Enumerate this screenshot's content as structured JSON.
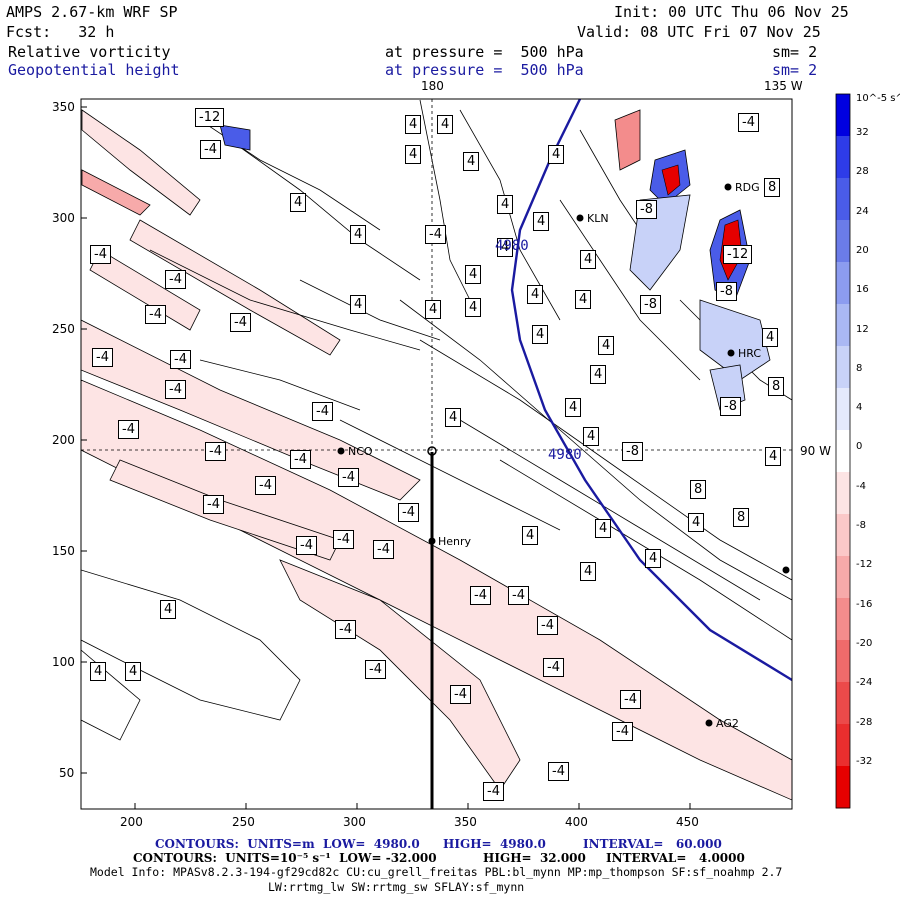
{
  "header": {
    "model_title": "AMPS 2.67-km WRF SP",
    "forecast": "Fcst:   32 h",
    "init": "Init: 00 UTC Thu 06 Nov 25",
    "valid": "Valid: 08 UTC Fri 07 Nov 25",
    "field1_name": "Relative vorticity",
    "field1_level": "at pressure =  500 hPa",
    "field1_smooth": "sm= 2",
    "field2_name": "Geopotential height",
    "field2_level": "at pressure =  500 hPa",
    "field2_smooth": "sm= 2"
  },
  "map": {
    "lon_180": "180",
    "lon_135w": "135 W",
    "lon_90w": "90 W",
    "x_ticks": [
      "200",
      "250",
      "300",
      "350",
      "400",
      "450"
    ],
    "y_ticks": [
      "350",
      "300",
      "250",
      "200",
      "150",
      "100",
      "50"
    ],
    "stations": [
      "NCO",
      "Henry",
      "KLN",
      "RDG",
      "HRC",
      "AG2"
    ],
    "height_contour_label": "4980",
    "contour_labels_neg": [
      "-4",
      "-8",
      "-12"
    ],
    "contour_labels_pos": [
      "4",
      "8"
    ]
  },
  "colorbar": {
    "unit": "10^-5 s^-1",
    "labels": [
      "32",
      "28",
      "24",
      "20",
      "16",
      "12",
      "8",
      "4",
      "0",
      "-4",
      "-8",
      "-12",
      "-16",
      "-20",
      "-24",
      "-28",
      "-32"
    ],
    "colors": [
      "#0000e0",
      "#2e3ce8",
      "#4a5ce8",
      "#6b7ce8",
      "#8c9cf0",
      "#aab8f4",
      "#c8d2f8",
      "#e4e9fc",
      "#ffffff",
      "#fde4e4",
      "#fbc8c8",
      "#f7aaaa",
      "#f38c8c",
      "#ef6b6b",
      "#ec4a4a",
      "#ea2e2e",
      "#e60000"
    ]
  },
  "footer": {
    "line1_a": "CONTOURS:  UNITS=m  LOW=  4980.0",
    "line1_b": "HIGH=  4980.0",
    "line1_c": "INTERVAL=   60.000",
    "line2_a": "CONTOURS:  UNITS=10⁻⁵ s⁻¹  LOW= -32.000",
    "line2_b": "HIGH=  32.000",
    "line2_c": "INTERVAL=   4.0000",
    "line3": "Model Info: MPASv8.2.3-194-gf29cd82c CU:cu_grell_freitas PBL:bl_mynn MP:mp_thompson SF:sf_noahmp 2.7",
    "line4": "LW:rrtmg_lw SW:rrtmg_sw SFLAY:sf_mynn"
  }
}
